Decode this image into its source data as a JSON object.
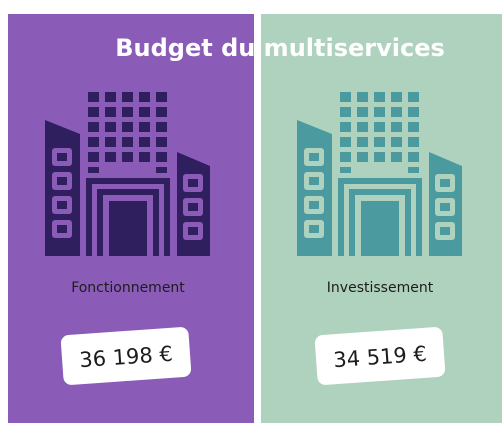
{
  "title": "Budget du multiservices",
  "panels": [
    {
      "label": "Fonctionnement",
      "amount": "36 198 €"
    },
    {
      "label": "Investissement",
      "amount": "34 519 €"
    }
  ]
}
